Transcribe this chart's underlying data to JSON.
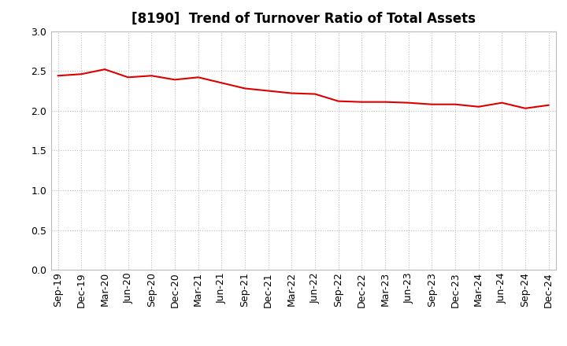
{
  "title": "[8190]  Trend of Turnover Ratio of Total Assets",
  "x_labels": [
    "Sep-19",
    "Dec-19",
    "Mar-20",
    "Jun-20",
    "Sep-20",
    "Dec-20",
    "Mar-21",
    "Jun-21",
    "Sep-21",
    "Dec-21",
    "Mar-22",
    "Jun-22",
    "Sep-22",
    "Dec-22",
    "Mar-23",
    "Jun-23",
    "Sep-23",
    "Dec-23",
    "Mar-24",
    "Jun-24",
    "Sep-24",
    "Dec-24"
  ],
  "values": [
    2.44,
    2.46,
    2.52,
    2.42,
    2.44,
    2.39,
    2.42,
    2.35,
    2.28,
    2.25,
    2.22,
    2.21,
    2.12,
    2.11,
    2.11,
    2.1,
    2.08,
    2.08,
    2.05,
    2.1,
    2.03,
    2.07
  ],
  "line_color": "#dd0000",
  "line_width": 1.5,
  "ylim": [
    0.0,
    3.0
  ],
  "yticks": [
    0.0,
    0.5,
    1.0,
    1.5,
    2.0,
    2.5,
    3.0
  ],
  "grid_color": "#aaaaaa",
  "background_color": "#ffffff",
  "title_fontsize": 12,
  "tick_fontsize": 9
}
